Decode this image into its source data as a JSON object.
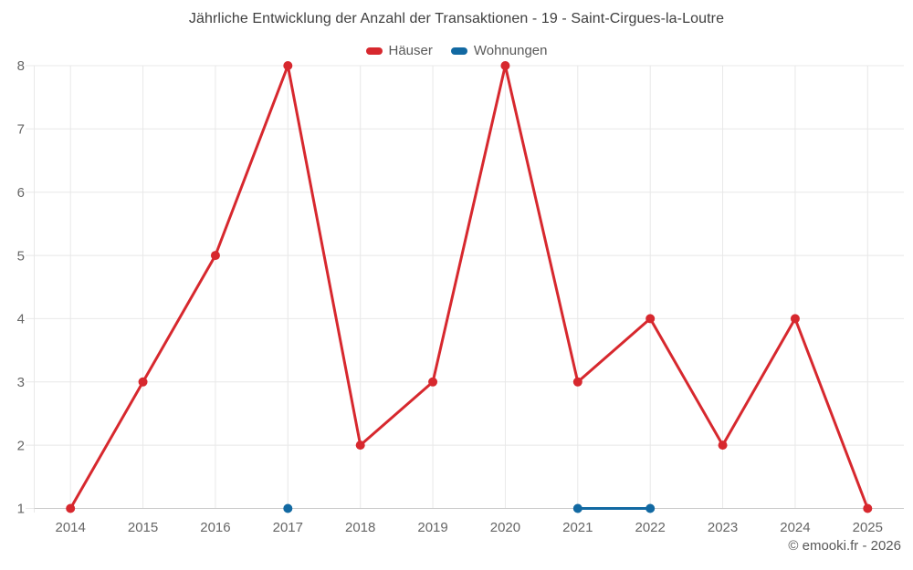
{
  "header": {
    "title": "Jährliche Entwicklung der Anzahl der Transaktionen - 19 - Saint-Cirgues-la-Loutre"
  },
  "footer": {
    "copyright": "© emooki.fr - 2026"
  },
  "style": {
    "grid_color": "#e8e8e8",
    "axis_color": "#cbcbcb",
    "tick_label_color": "#666666"
  },
  "chart_data": {
    "type": "line",
    "title": "Jährliche Entwicklung der Anzahl der Transaktionen - 19 - Saint-Cirgues-la-Loutre",
    "categories": [
      "2014",
      "2015",
      "2016",
      "2017",
      "2018",
      "2019",
      "2020",
      "2021",
      "2022",
      "2023",
      "2024",
      "2025"
    ],
    "series": [
      {
        "name": "Häuser",
        "color": "#d7282e",
        "values": [
          1,
          3,
          5,
          8,
          2,
          3,
          8,
          3,
          4,
          2,
          4,
          1
        ]
      },
      {
        "name": "Wohnungen",
        "color": "#1269a2",
        "values": [
          null,
          null,
          null,
          1,
          null,
          null,
          null,
          1,
          1,
          null,
          null,
          null
        ]
      }
    ],
    "xlabel": "",
    "ylabel": "",
    "ylim": [
      1,
      8
    ],
    "yticks": [
      1,
      2,
      3,
      4,
      5,
      6,
      7,
      8
    ],
    "grid": true,
    "legend_position": "top"
  }
}
